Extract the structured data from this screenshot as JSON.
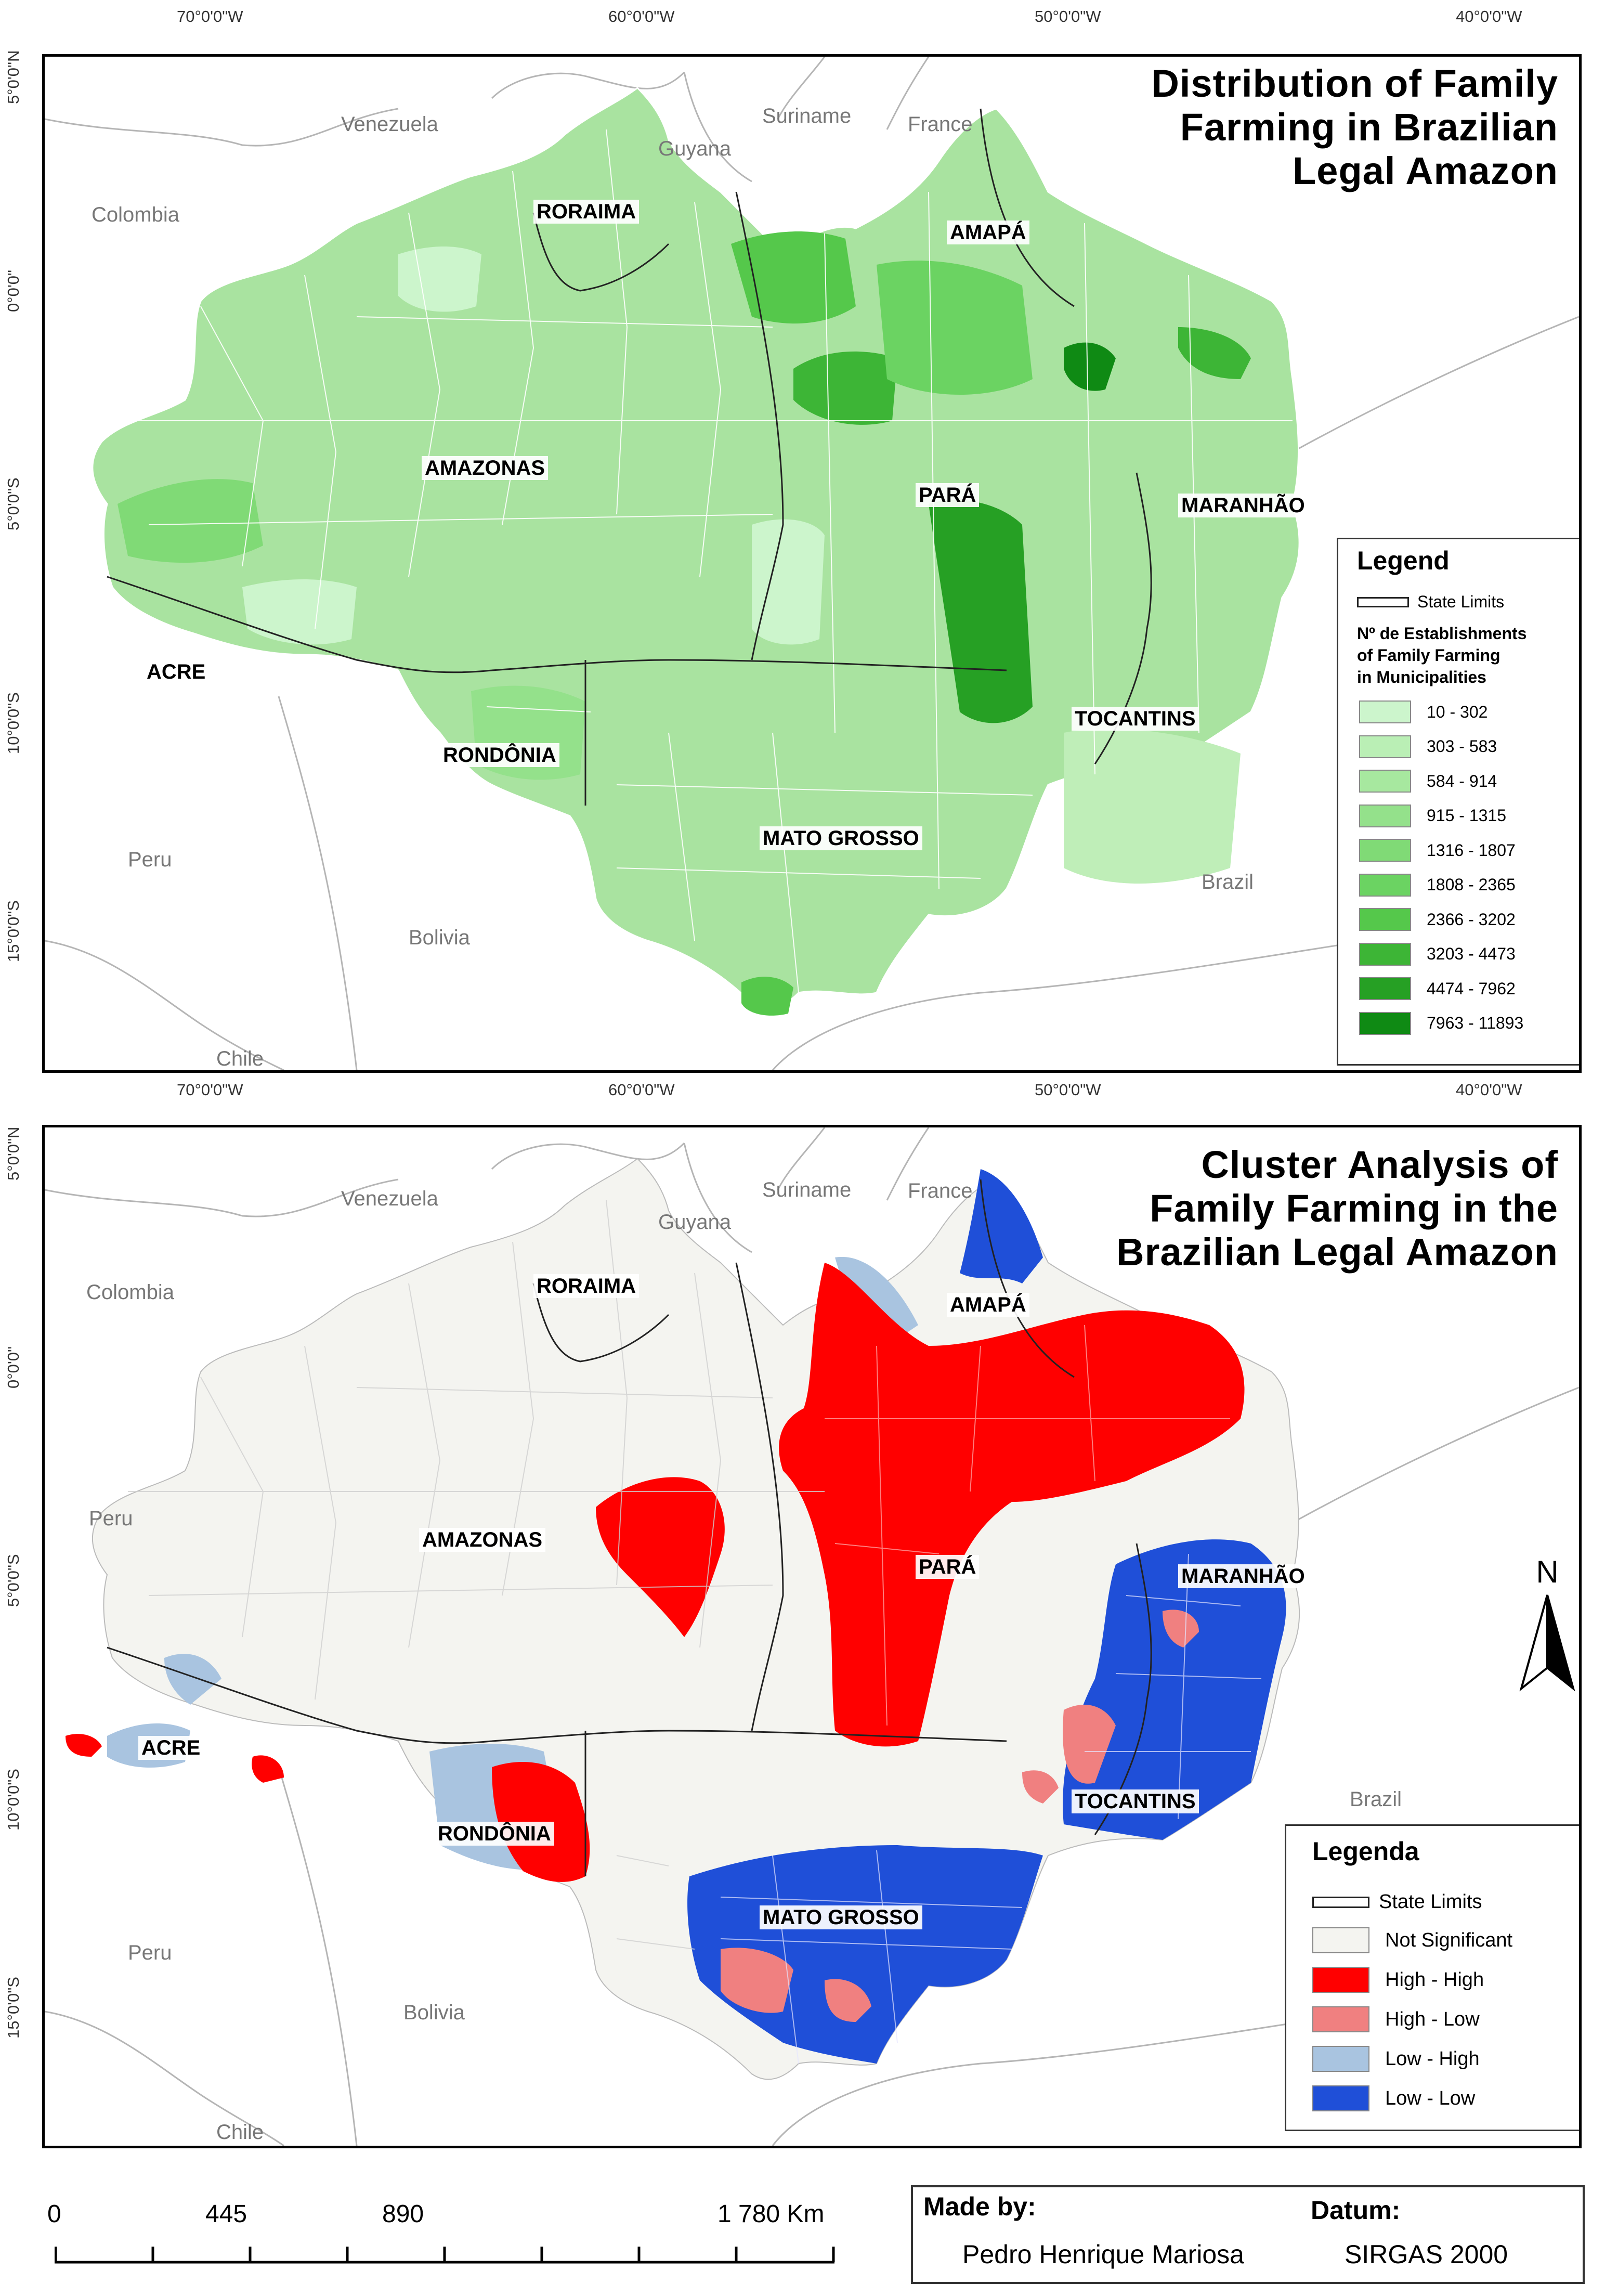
{
  "map_top": {
    "title_lines": [
      "Distribution of Family",
      "Farming in Brazilian",
      "Legal Amazon"
    ],
    "lon_ticks": [
      "70°0'0\"W",
      "60°0'0\"W",
      "50°0'0\"W",
      "40°0'0\"W"
    ],
    "lat_ticks": [
      "5°0'0\"N",
      "0°0'0\"",
      "5°0'0\"S",
      "10°0'0\"S",
      "15°0'0\"S"
    ],
    "countries": [
      "Venezuela",
      "Guyana",
      "Suriname",
      "France",
      "Colombia",
      "Peru",
      "Bolivia",
      "Chile",
      "Brazil"
    ],
    "states": [
      "RORAIMA",
      "AMAPÁ",
      "AMAZONAS",
      "PARÁ",
      "MARANHÃO",
      "ACRE",
      "RONDÔNIA",
      "TOCANTINS",
      "MATO GROSSO"
    ],
    "legend": {
      "title": "Legend",
      "state_limits": "State Limits",
      "subtitle_lines": [
        "Nº de Establishments",
        "of Family Farming",
        "in Municipalities"
      ],
      "classes": [
        {
          "label": "10 - 302",
          "color": "#ccf5cc"
        },
        {
          "label": "303 - 583",
          "color": "#baefb5"
        },
        {
          "label": "584 - 914",
          "color": "#a7e89f"
        },
        {
          "label": "915 - 1315",
          "color": "#94e18b"
        },
        {
          "label": "1316 - 1807",
          "color": "#80da76"
        },
        {
          "label": "1808 - 2365",
          "color": "#6bd362"
        },
        {
          "label": "2366 - 3202",
          "color": "#55c84b"
        },
        {
          "label": "3203 - 4473",
          "color": "#3db536"
        },
        {
          "label": "4474 - 7962",
          "color": "#26a024"
        },
        {
          "label": "7963 - 11893",
          "color": "#0f8a14"
        }
      ]
    }
  },
  "map_bottom": {
    "title_lines": [
      "Cluster Analysis of",
      "Family Farming in the",
      "Brazilian Legal Amazon"
    ],
    "lon_ticks": [
      "70°0'0\"W",
      "60°0'0\"W",
      "50°0'0\"W",
      "40°0'0\"W"
    ],
    "lat_ticks": [
      "5°0'0\"N",
      "0°0'0\"",
      "5°0'0\"S",
      "10°0'0\"S",
      "15°0'0\"S"
    ],
    "countries": [
      "Venezuela",
      "Guyana",
      "Suriname",
      "France",
      "Colombia",
      "Peru",
      "Bolivia",
      "Chile",
      "Brazil"
    ],
    "states": [
      "RORAIMA",
      "AMAPÁ",
      "AMAZONAS",
      "PARÁ",
      "MARANHÃO",
      "ACRE",
      "RONDÔNIA",
      "TOCANTINS",
      "MATO GROSSO"
    ],
    "north": "N",
    "legend": {
      "title": "Legenda",
      "state_limits": "State Limits",
      "classes": [
        {
          "label": "Not Significant",
          "color": "#f4f4f0"
        },
        {
          "label": "High - High",
          "color": "#ff0000"
        },
        {
          "label": "High - Low",
          "color": "#f08080"
        },
        {
          "label": "Low - High",
          "color": "#a9c4e0"
        },
        {
          "label": "Low - Low",
          "color": "#1f4fd8"
        }
      ]
    }
  },
  "scale": {
    "labels": [
      "0",
      "445",
      "890",
      "1 780 Km"
    ],
    "ticks_km": [
      0,
      222.5,
      445,
      667.5,
      890,
      1112.5,
      1335,
      1557.5,
      1780
    ]
  },
  "credits": {
    "made_by_label": "Made by:",
    "author": "Pedro Henrique Mariosa",
    "datum_label": "Datum:",
    "datum": "SIRGAS 2000"
  }
}
